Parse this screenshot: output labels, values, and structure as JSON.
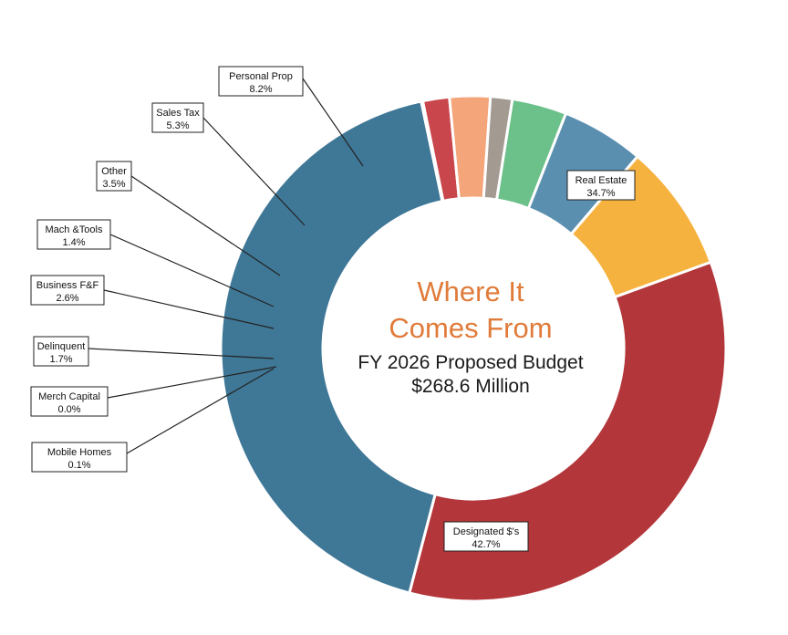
{
  "chart_data": {
    "type": "pie",
    "variant": "donut",
    "title_line1": "Where It",
    "title_line2": "Comes From",
    "subtitle": "FY 2026 Proposed Budget",
    "total": "$268.6 Million",
    "slices": [
      {
        "label": "Real Estate",
        "value": 34.7,
        "pct_text": "34.7%",
        "color": "#b3363a"
      },
      {
        "label": "Designated $'s",
        "value": 42.7,
        "pct_text": "42.7%",
        "color": "#3f7796"
      },
      {
        "label": "Mobile Homes",
        "value": 0.1,
        "pct_text": "0.1%",
        "color": "#7a1d24"
      },
      {
        "label": "Merch Capital",
        "value": 0.0,
        "pct_text": "0.0%",
        "color": "#8a2a2a"
      },
      {
        "label": "Delinquent",
        "value": 1.7,
        "pct_text": "1.7%",
        "color": "#c9474c"
      },
      {
        "label": "Business F&F",
        "value": 2.6,
        "pct_text": "2.6%",
        "color": "#f4a57a"
      },
      {
        "label": "Mach &Tools",
        "value": 1.4,
        "pct_text": "1.4%",
        "color": "#a39a92"
      },
      {
        "label": "Other",
        "value": 3.5,
        "pct_text": "3.5%",
        "color": "#6cc08a"
      },
      {
        "label": "Sales Tax",
        "value": 5.3,
        "pct_text": "5.3%",
        "color": "#5a8fb0"
      },
      {
        "label": "Personal Prop",
        "value": 8.2,
        "pct_text": "8.2%",
        "color": "#f6b23e"
      }
    ]
  }
}
